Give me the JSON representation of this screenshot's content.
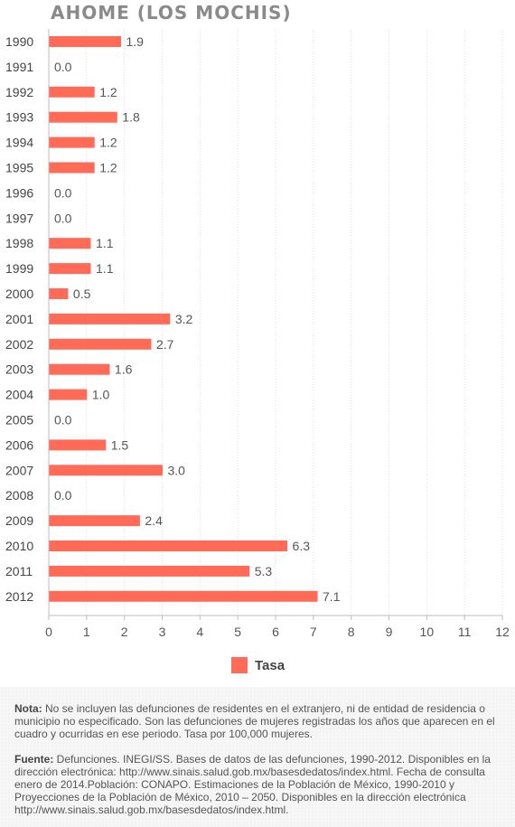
{
  "title": "AHOME (LOS MOCHIS)",
  "colors": {
    "bar": "#ff6b57",
    "axis": "#bdbdbd",
    "grid": "#dddddd",
    "text": "#555555"
  },
  "legend": {
    "label": "Tasa"
  },
  "notes": {
    "nota_label": "Nota:",
    "nota_text": " No se incluyen las defunciones de residentes en el extranjero, ni de entidad de residencia o municipio no especificado. Son las defunciones de mujeres registradas los años que aparecen en el cuadro y ocurridas en ese periodo. Tasa por 100,000 mujeres.",
    "fuente_label": "Fuente:",
    "fuente_text": " Defunciones. INEGI/SS. Bases de datos de las defunciones, 1990-2012. Disponibles en la dirección electrónica: http://www.sinais.salud.gob.mx/basesdedatos/index.html. Fecha de consulta enero de 2014.Población: CONAPO. Estimaciones de la Población de México, 1990-2010 y Proyecciones de la Población de México, 2010 – 2050. Disponibles en la dirección electrónica http://www.sinais.salud.gob.mx/basesdedatos/index.html."
  },
  "chart_data": {
    "type": "bar",
    "orientation": "horizontal",
    "title": "AHOME (LOS MOCHIS)",
    "categories": [
      "1990",
      "1991",
      "1992",
      "1993",
      "1994",
      "1995",
      "1996",
      "1997",
      "1998",
      "1999",
      "2000",
      "2001",
      "2002",
      "2003",
      "2004",
      "2005",
      "2006",
      "2007",
      "2008",
      "2009",
      "2010",
      "2011",
      "2012"
    ],
    "series": [
      {
        "name": "Tasa",
        "values": [
          1.9,
          0.0,
          1.2,
          1.8,
          1.2,
          1.2,
          0.0,
          0.0,
          1.1,
          1.1,
          0.5,
          3.2,
          2.7,
          1.6,
          1.0,
          0.0,
          1.5,
          3.0,
          0.0,
          2.4,
          6.3,
          5.3,
          7.1
        ]
      }
    ],
    "value_labels": [
      "1.9",
      "0.0",
      "1.2",
      "1.8",
      "1.2",
      "1.2",
      "0.0",
      "0.0",
      "1.1",
      "1.1",
      "0.5",
      "3.2",
      "2.7",
      "1.6",
      "1.0",
      "0.0",
      "1.5",
      "3.0",
      "0.0",
      "2.4",
      "6.3",
      "5.3",
      "7.1"
    ],
    "xlim": [
      0,
      12
    ],
    "xticks": [
      "0",
      "1",
      "2",
      "3",
      "4",
      "5",
      "6",
      "7",
      "8",
      "9",
      "10",
      "11",
      "12"
    ],
    "grid": true,
    "legend_position": "bottom"
  }
}
